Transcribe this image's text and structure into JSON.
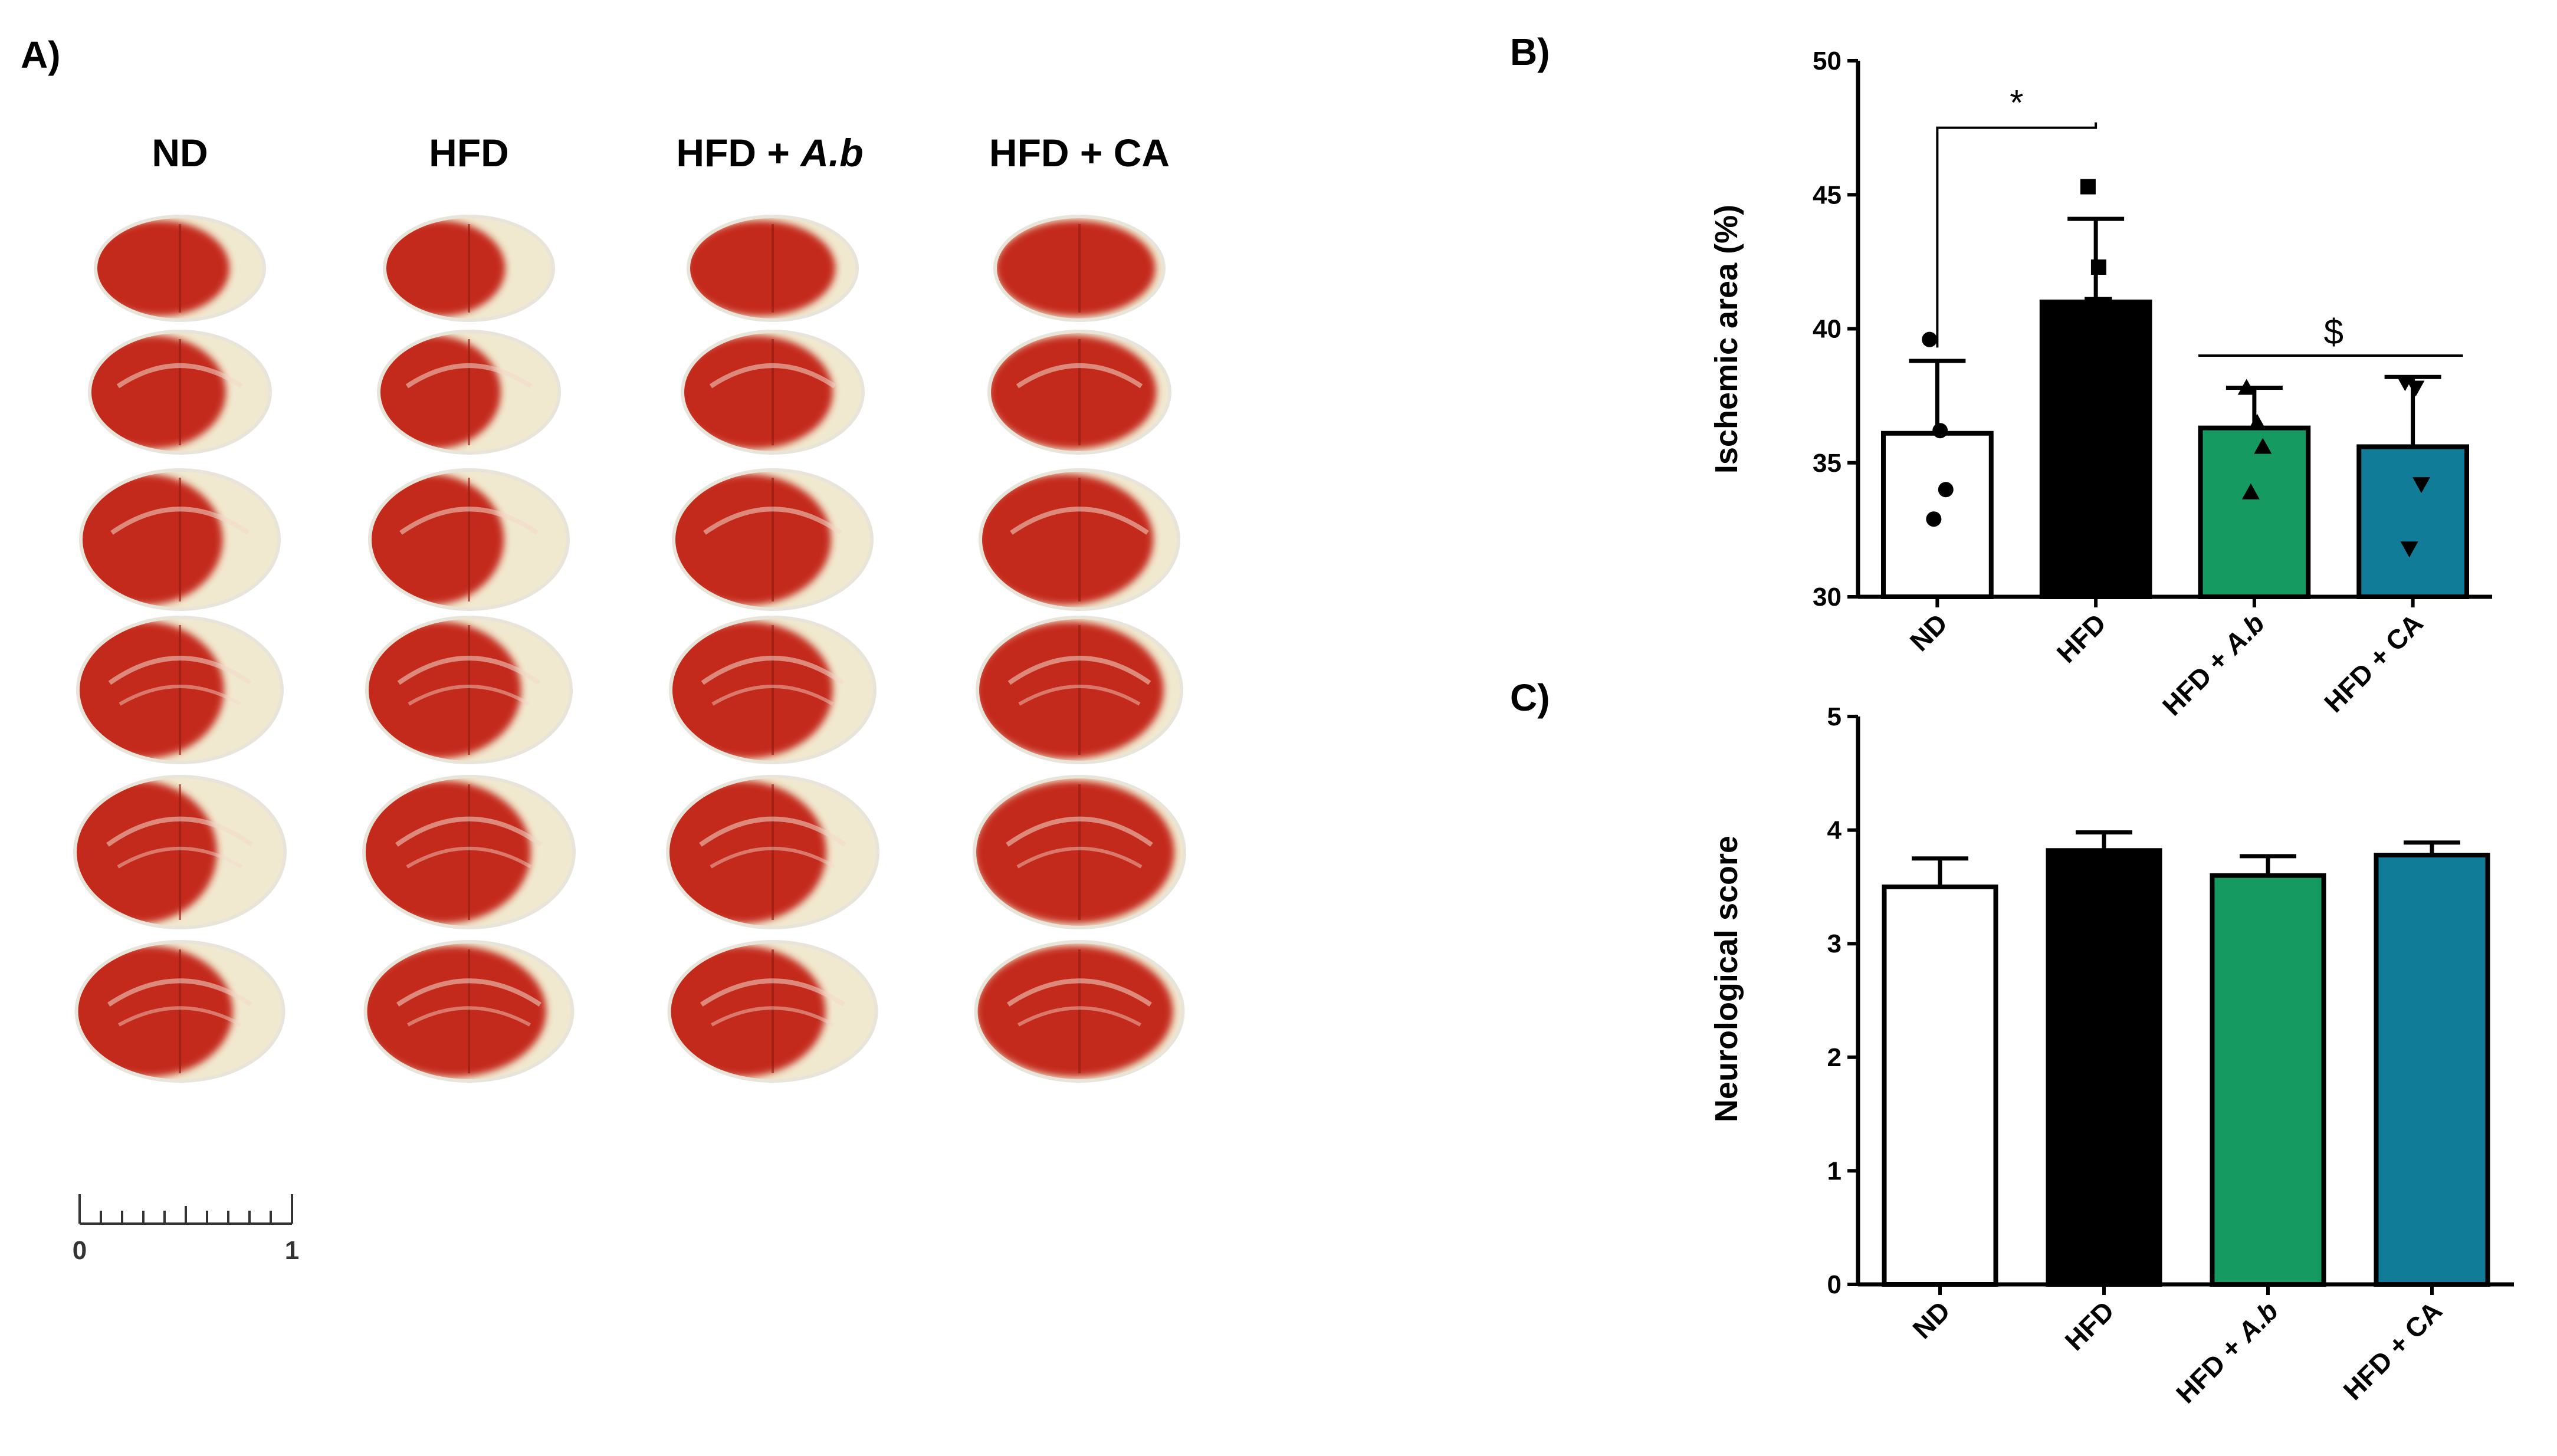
{
  "panels": {
    "a_label": "A)",
    "b_label": "B)",
    "c_label": "C)"
  },
  "panel_a": {
    "group_headers": [
      {
        "pre": "ND",
        "italic": ""
      },
      {
        "pre": "HFD",
        "italic": ""
      },
      {
        "pre": "HFD + ",
        "italic": "A.b"
      },
      {
        "pre": "HFD + CA",
        "italic": ""
      }
    ],
    "scale_bar": {
      "start": "0",
      "end": "1"
    },
    "stain_color": "#c42a1b",
    "infarct_color": "#f1e9cf"
  },
  "colors": {
    "ND": "#ffffff",
    "HFD": "#000000",
    "HFD + A.b": "#159a62",
    "HFD + CA": "#117c97"
  },
  "chart_data": [
    {
      "type": "bar",
      "panel": "B",
      "categories": [
        "ND",
        "HFD",
        "HFD + A.b",
        "HFD + CA"
      ],
      "cat_pre": [
        "ND",
        "HFD",
        "HFD + ",
        "HFD + CA"
      ],
      "cat_italic": [
        "",
        "",
        "A.b",
        ""
      ],
      "values": [
        36.1,
        41.0,
        36.3,
        35.6
      ],
      "errors": [
        2.7,
        3.1,
        1.5,
        2.6
      ],
      "points": [
        [
          39.6,
          36.2,
          34.0,
          32.9
        ],
        [
          45.3,
          42.3,
          40.9,
          40.9
        ],
        [
          37.8,
          36.5,
          35.6,
          33.9
        ],
        [
          38.0,
          37.8,
          34.2,
          31.8
        ]
      ],
      "markers": [
        "circle",
        "square",
        "triangle",
        "triangle-down"
      ],
      "ylabel": "Ischemic area (%)",
      "xlabel": "",
      "ylim": [
        30,
        50
      ],
      "yticks": [
        30,
        35,
        40,
        45,
        50
      ],
      "annotations": [
        {
          "text": "*",
          "from": 0,
          "to": 1,
          "y": 47.5,
          "type": "bracket"
        },
        {
          "text": "$",
          "from": 2,
          "to": 3,
          "y": 39.0,
          "type": "line"
        }
      ]
    },
    {
      "type": "bar",
      "panel": "C",
      "categories": [
        "ND",
        "HFD",
        "HFD + A.b",
        "HFD + CA"
      ],
      "cat_pre": [
        "ND",
        "HFD",
        "HFD + ",
        "HFD + CA"
      ],
      "cat_italic": [
        "",
        "",
        "A.b",
        ""
      ],
      "values": [
        3.5,
        3.82,
        3.6,
        3.78
      ],
      "errors": [
        0.25,
        0.16,
        0.17,
        0.11
      ],
      "ylabel": "Neurological score",
      "xlabel": "",
      "ylim": [
        0,
        5
      ],
      "yticks": [
        0,
        1,
        2,
        3,
        4,
        5
      ]
    }
  ]
}
